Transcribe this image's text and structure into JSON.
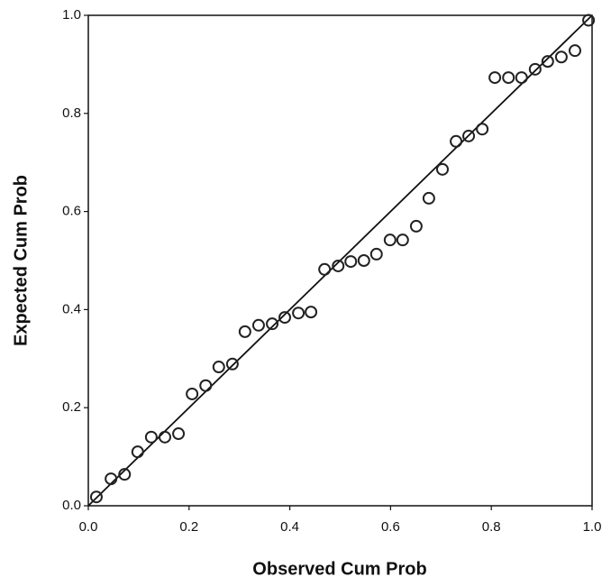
{
  "chart_data": {
    "type": "scatter",
    "x_label": "Observed Cum Prob",
    "y_label": "Expected Cum Prob",
    "x": [
      0.016,
      0.045,
      0.072,
      0.098,
      0.125,
      0.152,
      0.179,
      0.206,
      0.233,
      0.259,
      0.286,
      0.311,
      0.338,
      0.365,
      0.39,
      0.417,
      0.442,
      0.469,
      0.496,
      0.521,
      0.547,
      0.572,
      0.599,
      0.624,
      0.651,
      0.676,
      0.703,
      0.73,
      0.755,
      0.782,
      0.807,
      0.834,
      0.86,
      0.887,
      0.912,
      0.939,
      0.966,
      0.993
    ],
    "values": [
      0.018,
      0.055,
      0.064,
      0.11,
      0.14,
      0.14,
      0.147,
      0.228,
      0.245,
      0.283,
      0.289,
      0.355,
      0.368,
      0.371,
      0.384,
      0.393,
      0.395,
      0.482,
      0.489,
      0.498,
      0.5,
      0.513,
      0.542,
      0.542,
      0.57,
      0.627,
      0.686,
      0.743,
      0.754,
      0.768,
      0.873,
      0.873,
      0.873,
      0.89,
      0.906,
      0.915,
      0.928,
      0.99
    ],
    "color": "#222222",
    "xlim": [
      0,
      1
    ],
    "ylim": [
      0,
      1
    ],
    "xticks": [
      {
        "value": 0,
        "label": "0.0"
      },
      0.2,
      0.4,
      0.6,
      0.8,
      {
        "value": 1,
        "label": "1.0"
      }
    ],
    "yticks": [
      {
        "value": 0,
        "label": "0.0"
      },
      0.2,
      0.4,
      0.6,
      0.8,
      {
        "value": 1,
        "label": "1.0"
      }
    ],
    "identity_line": true,
    "grid": false
  }
}
